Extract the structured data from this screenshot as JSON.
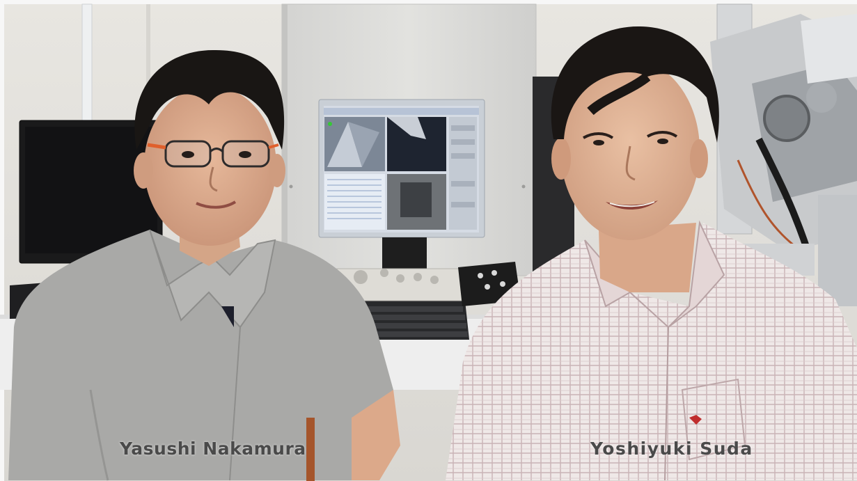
{
  "captions": {
    "left_person": "Yasushi Nakamura",
    "right_person": "Yoshiyuki Suda"
  },
  "colors": {
    "wall": "#e3e1dc",
    "cabinet": "#dcdcd9",
    "left_shirt": "#a9a9a7",
    "right_shirt": "#ece4e3",
    "caption_text": "#4a4a4a"
  },
  "icons": [
    "microscope-icon"
  ]
}
